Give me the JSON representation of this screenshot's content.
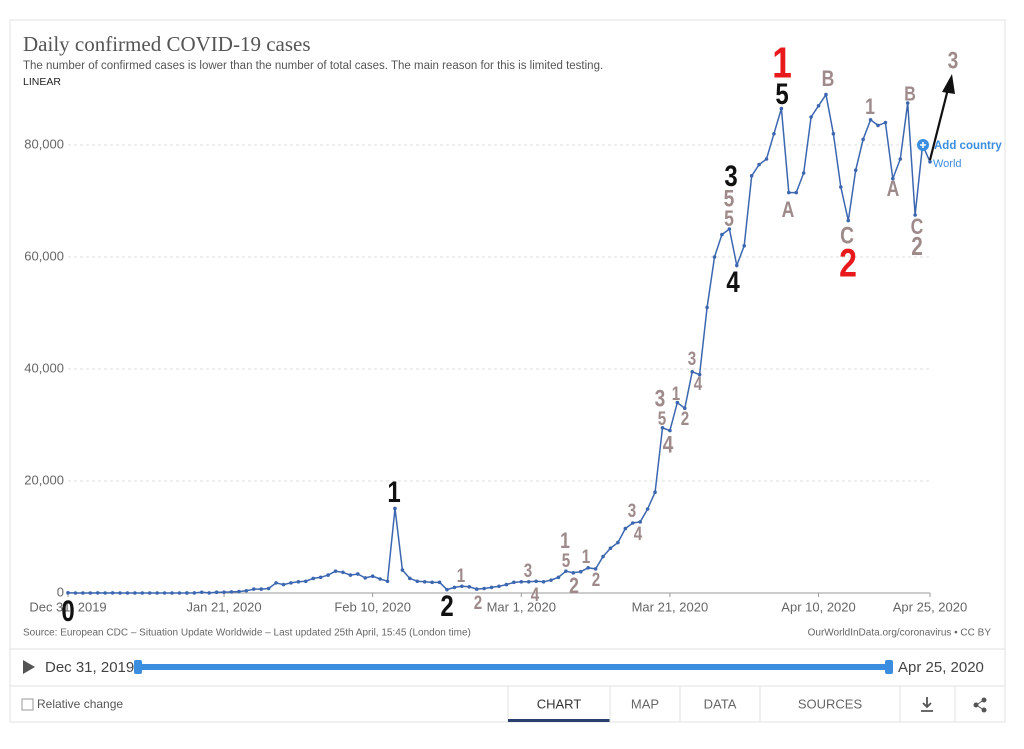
{
  "chart_data": {
    "type": "line",
    "title": "Daily confirmed COVID-19 cases",
    "subtitle": "The number of confirmed cases is lower than the number of total cases. The main reason for this is limited testing.",
    "scale_label": "LINEAR",
    "source": "Source: European CDC – Situation Update Worldwide – Last updated 25th April, 15:45 (London time)",
    "credit": "OurWorldInData.org/coronavirus • CC BY",
    "add_country": "Add country",
    "x": [
      "2019-12-31",
      "2020-01-01",
      "2020-01-02",
      "2020-01-03",
      "2020-01-04",
      "2020-01-05",
      "2020-01-06",
      "2020-01-07",
      "2020-01-08",
      "2020-01-09",
      "2020-01-10",
      "2020-01-11",
      "2020-01-12",
      "2020-01-13",
      "2020-01-14",
      "2020-01-15",
      "2020-01-16",
      "2020-01-17",
      "2020-01-18",
      "2020-01-19",
      "2020-01-20",
      "2020-01-21",
      "2020-01-22",
      "2020-01-23",
      "2020-01-24",
      "2020-01-25",
      "2020-01-26",
      "2020-01-27",
      "2020-01-28",
      "2020-01-29",
      "2020-01-30",
      "2020-01-31",
      "2020-02-01",
      "2020-02-02",
      "2020-02-03",
      "2020-02-04",
      "2020-02-05",
      "2020-02-06",
      "2020-02-07",
      "2020-02-08",
      "2020-02-09",
      "2020-02-10",
      "2020-02-11",
      "2020-02-12",
      "2020-02-13",
      "2020-02-14",
      "2020-02-15",
      "2020-02-16",
      "2020-02-17",
      "2020-02-18",
      "2020-02-19",
      "2020-02-20",
      "2020-02-21",
      "2020-02-22",
      "2020-02-23",
      "2020-02-24",
      "2020-02-25",
      "2020-02-26",
      "2020-02-27",
      "2020-02-28",
      "2020-02-29",
      "2020-03-01",
      "2020-03-02",
      "2020-03-03",
      "2020-03-04",
      "2020-03-05",
      "2020-03-06",
      "2020-03-07",
      "2020-03-08",
      "2020-03-09",
      "2020-03-10",
      "2020-03-11",
      "2020-03-12",
      "2020-03-13",
      "2020-03-14",
      "2020-03-15",
      "2020-03-16",
      "2020-03-17",
      "2020-03-18",
      "2020-03-19",
      "2020-03-20",
      "2020-03-21",
      "2020-03-22",
      "2020-03-23",
      "2020-03-24",
      "2020-03-25",
      "2020-03-26",
      "2020-03-27",
      "2020-03-28",
      "2020-03-29",
      "2020-03-30",
      "2020-03-31",
      "2020-04-01",
      "2020-04-02",
      "2020-04-03",
      "2020-04-04",
      "2020-04-05",
      "2020-04-06",
      "2020-04-07",
      "2020-04-08",
      "2020-04-09",
      "2020-04-10",
      "2020-04-11",
      "2020-04-12",
      "2020-04-13",
      "2020-04-14",
      "2020-04-15",
      "2020-04-16",
      "2020-04-17",
      "2020-04-18",
      "2020-04-19",
      "2020-04-20",
      "2020-04-21",
      "2020-04-22",
      "2020-04-23",
      "2020-04-24",
      "2020-04-25"
    ],
    "series": [
      {
        "name": "World",
        "color": "#3c67b0",
        "values": [
          27,
          0,
          0,
          0,
          17,
          0,
          15,
          0,
          0,
          0,
          0,
          0,
          0,
          1,
          0,
          0,
          4,
          17,
          136,
          20,
          139,
          150,
          200,
          250,
          400,
          700,
          700,
          800,
          1800,
          1500,
          1800,
          2000,
          2100,
          2600,
          2800,
          3200,
          3900,
          3700,
          3200,
          3400,
          2700,
          3000,
          2500,
          2100,
          15100,
          4100,
          2600,
          2100,
          2000,
          1900,
          1900,
          600,
          1000,
          1200,
          1100,
          700,
          800,
          1000,
          1200,
          1500,
          1900,
          2000,
          2000,
          2100,
          2000,
          2300,
          2800,
          3900,
          3600,
          3800,
          4500,
          4300,
          6500,
          8000,
          9000,
          11500,
          12500,
          12700,
          15000,
          18000,
          29500,
          29000,
          34000,
          33000,
          39500,
          39000,
          51000,
          60000,
          64000,
          65000,
          58500,
          62000,
          74500,
          76500,
          77500,
          82000,
          86500,
          71500,
          71500,
          75000,
          85000,
          87000,
          89000,
          82000,
          72500,
          66500,
          75500,
          81000,
          84500,
          83500,
          84000,
          74000,
          77500,
          87500,
          67500,
          80000,
          77000
        ]
      }
    ],
    "xlim": [
      "2019-12-31",
      "2020-04-25"
    ],
    "xticks": [
      {
        "value": "2019-12-31",
        "label": "Dec 31, 2019"
      },
      {
        "value": "2020-01-21",
        "label": "Jan 21, 2020"
      },
      {
        "value": "2020-02-10",
        "label": "Feb 10, 2020"
      },
      {
        "value": "2020-03-01",
        "label": "Mar 1, 2020"
      },
      {
        "value": "2020-03-21",
        "label": "Mar 21, 2020"
      },
      {
        "value": "2020-04-10",
        "label": "Apr 10, 2020"
      },
      {
        "value": "2020-04-25",
        "label": "Apr 25, 2020"
      }
    ],
    "ylim": [
      0,
      90000
    ],
    "yticks": [
      0,
      {
        "value": 20000,
        "label": "20,000"
      },
      {
        "value": 40000,
        "label": "40,000"
      },
      {
        "value": 60000,
        "label": "60,000"
      },
      {
        "value": 80000,
        "label": "80,000"
      }
    ],
    "grid": true,
    "annotations": [
      {
        "text": "0",
        "color": "#111111"
      },
      {
        "text": "1",
        "color": "#111111"
      },
      {
        "text": "2",
        "color": "#111111"
      },
      {
        "text": "1",
        "color": "#9e8a8a"
      },
      {
        "text": "2",
        "color": "#9e8a8a"
      },
      {
        "text": "3",
        "color": "#9e8a8a"
      },
      {
        "text": "4",
        "color": "#9e8a8a"
      },
      {
        "text": "1",
        "color": "#9e8a8a"
      },
      {
        "text": "5",
        "color": "#9e8a8a"
      },
      {
        "text": "2",
        "color": "#9e8a8a"
      },
      {
        "text": "1",
        "color": "#9e8a8a"
      },
      {
        "text": "2",
        "color": "#9e8a8a"
      },
      {
        "text": "3",
        "color": "#9e8a8a"
      },
      {
        "text": "4",
        "color": "#9e8a8a"
      },
      {
        "text": "3",
        "color": "#9e8a8a"
      },
      {
        "text": "5",
        "color": "#9e8a8a"
      },
      {
        "text": "4",
        "color": "#9e8a8a"
      },
      {
        "text": "1",
        "color": "#9e8a8a"
      },
      {
        "text": "2",
        "color": "#9e8a8a"
      },
      {
        "text": "3",
        "color": "#9e8a8a"
      },
      {
        "text": "4",
        "color": "#9e8a8a"
      },
      {
        "text": "3",
        "color": "#111111"
      },
      {
        "text": "5",
        "color": "#9e8a8a"
      },
      {
        "text": "5",
        "color": "#9e8a8a"
      },
      {
        "text": "4",
        "color": "#111111"
      },
      {
        "text": "1",
        "color": "#e8191b"
      },
      {
        "text": "5",
        "color": "#111111"
      },
      {
        "text": "A",
        "color": "#9e8a8a"
      },
      {
        "text": "B",
        "color": "#9e8a8a"
      },
      {
        "text": "C",
        "color": "#9e8a8a"
      },
      {
        "text": "2",
        "color": "#e8191b"
      },
      {
        "text": "1",
        "color": "#9e8a8a"
      },
      {
        "text": "A",
        "color": "#9e8a8a"
      },
      {
        "text": "B",
        "color": "#9e8a8a"
      },
      {
        "text": "C",
        "color": "#9e8a8a"
      },
      {
        "text": "2",
        "color": "#9e8a8a"
      },
      {
        "text": "3",
        "color": "#9e8a8a"
      }
    ]
  },
  "controls": {
    "start": "Dec 31, 2019",
    "end": "Apr 25, 2020",
    "relative_change": "Relative change",
    "tabs": [
      "CHART",
      "MAP",
      "DATA",
      "SOURCES"
    ]
  }
}
